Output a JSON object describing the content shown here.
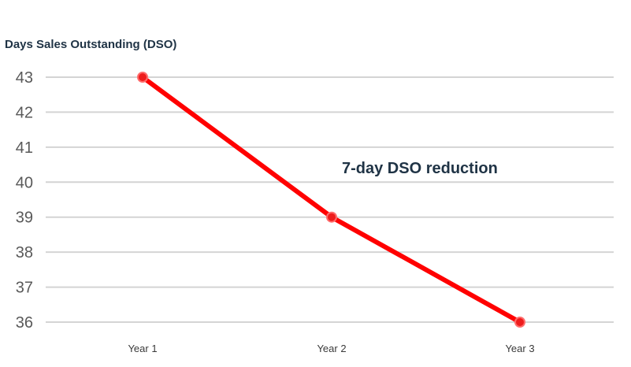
{
  "chart_data": {
    "type": "line",
    "ylabel": "Days Sales Outstanding (DSO)",
    "xlabel": "",
    "categories": [
      "Year 1",
      "Year 2",
      "Year 3"
    ],
    "series": [
      {
        "values": [
          43,
          39,
          36
        ],
        "color": "#ff0000"
      }
    ],
    "ylim": [
      36,
      43
    ],
    "yticks": [
      43,
      42,
      41,
      40,
      39,
      38,
      37,
      36
    ],
    "grid": true,
    "annotation": "7-day DSO reduction"
  }
}
